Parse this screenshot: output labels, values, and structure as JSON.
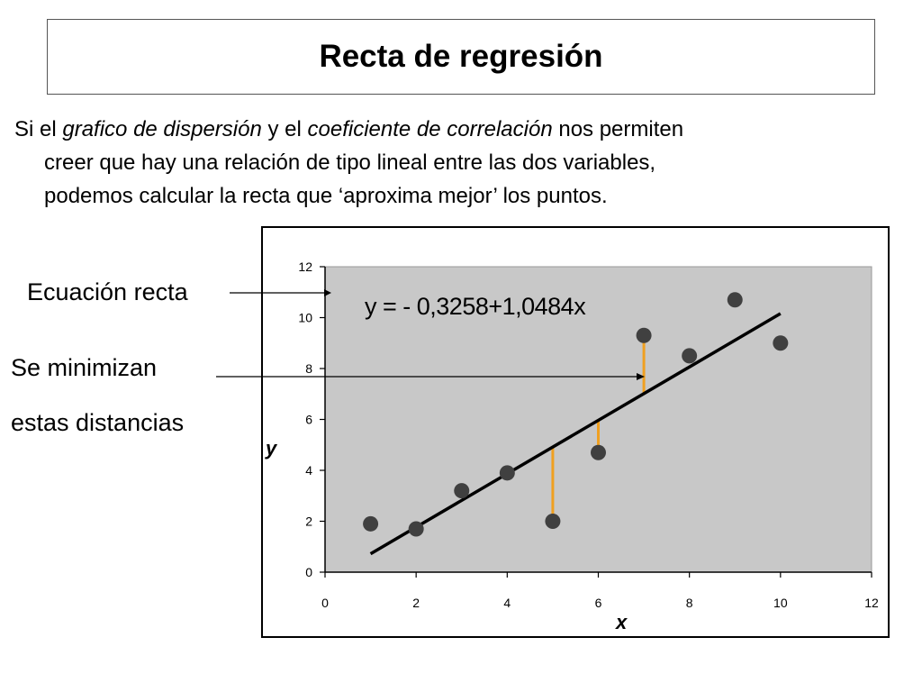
{
  "slide": {
    "title": "Recta de regresión",
    "intro": {
      "t1": "Si el ",
      "t2": "grafico de dispersión",
      "t3": " y el ",
      "t4": "coeficiente de correlación",
      "t5": " nos permiten",
      "line2": "creer que hay una relación de tipo lineal entre las dos variables,",
      "line3": "podemos calcular la recta que ‘aproxima mejor’ los puntos."
    },
    "annotations": {
      "ecuacion": "Ecuación recta",
      "minimizan": "Se minimizan",
      "distancias": "estas distancias"
    }
  },
  "chart_data": {
    "type": "scatter",
    "x": [
      1,
      2,
      3,
      4,
      5,
      6,
      7,
      8,
      9,
      10
    ],
    "y": [
      1.9,
      1.7,
      3.2,
      3.9,
      2.0,
      4.7,
      9.3,
      8.5,
      10.7,
      9.0
    ],
    "xlabel": "x",
    "ylabel": "y",
    "xlim": [
      0,
      12
    ],
    "ylim": [
      0,
      12
    ],
    "xticks": [
      "0",
      "2",
      "4",
      "6",
      "8",
      "10",
      "12"
    ],
    "yticks": [
      "0",
      "2",
      "4",
      "6",
      "8",
      "10",
      "12"
    ],
    "regression": {
      "intercept": -0.3258,
      "slope": 1.0484,
      "x_range": [
        1,
        10
      ]
    },
    "equation_label": "y = - 0,3258+1,0484x",
    "residuals_shown_at_x": [
      5,
      6,
      7
    ],
    "grid": false,
    "legend": "none",
    "colors": {
      "plot_bg": "#c8c8c8",
      "marker": "#404040",
      "line": "#000000",
      "residual": "#f0a020"
    }
  }
}
